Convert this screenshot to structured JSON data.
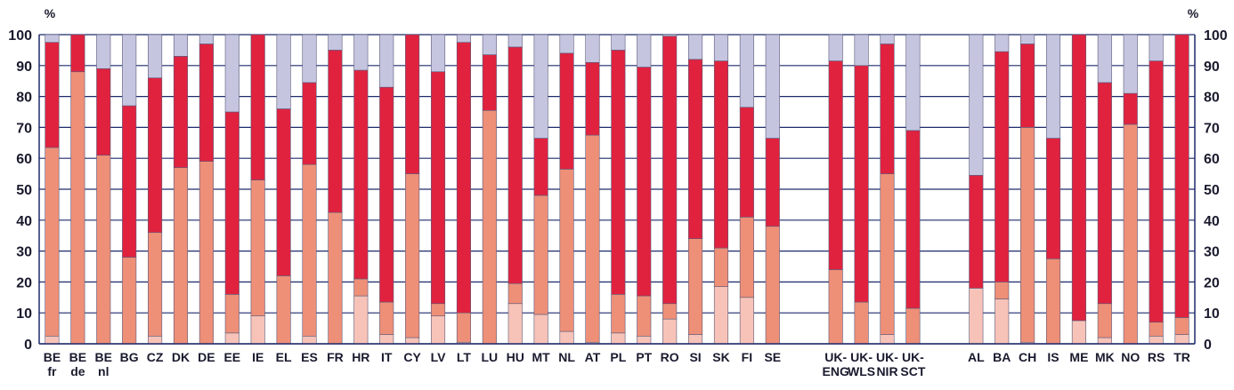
{
  "chart_data": {
    "type": "bar",
    "stacked": true,
    "y_unit_left": "%",
    "y_unit_right": "%",
    "ylim": [
      0,
      100
    ],
    "yticks": [
      "0",
      "10",
      "20",
      "30",
      "40",
      "50",
      "60",
      "70",
      "80",
      "90",
      "100"
    ],
    "grid": true,
    "categories": [
      [
        "BE",
        "fr"
      ],
      [
        "BE",
        "de"
      ],
      [
        "BE",
        "nl"
      ],
      [
        "BG"
      ],
      [
        "CZ"
      ],
      [
        "DK"
      ],
      [
        "DE"
      ],
      [
        "EE"
      ],
      [
        "IE"
      ],
      [
        "EL"
      ],
      [
        "ES"
      ],
      [
        "FR"
      ],
      [
        "HR"
      ],
      [
        "IT"
      ],
      [
        "CY"
      ],
      [
        "LV"
      ],
      [
        "LT"
      ],
      [
        "LU"
      ],
      [
        "HU"
      ],
      [
        "MT"
      ],
      [
        "NL"
      ],
      [
        "AT"
      ],
      [
        "PL"
      ],
      [
        "PT"
      ],
      [
        "RO"
      ],
      [
        "SI"
      ],
      [
        "SK"
      ],
      [
        "FI"
      ],
      [
        "SE"
      ],
      [
        "UK-",
        "ENG"
      ],
      [
        "UK-",
        "WLS"
      ],
      [
        "UK-",
        "NIR"
      ],
      [
        "UK-",
        "SCT"
      ],
      [
        "AL"
      ],
      [
        "BA"
      ],
      [
        "CH"
      ],
      [
        "IS"
      ],
      [
        "ME"
      ],
      [
        "MK"
      ],
      [
        "NO"
      ],
      [
        "RS"
      ],
      [
        "TR"
      ]
    ],
    "groups": [
      29,
      4,
      9
    ],
    "colors": [
      "#f7c3b8",
      "#ee8f78",
      "#e0223f",
      "#c5c5e0"
    ],
    "series": [
      {
        "values": [
          2.5,
          0,
          0,
          0,
          2.5,
          0,
          0,
          3.5,
          9,
          0,
          2.5,
          0,
          15.5,
          3,
          2,
          9,
          0.5,
          0,
          13,
          9.5,
          4,
          0.5,
          3.5,
          2.5,
          8,
          3,
          18.5,
          15,
          0,
          0,
          0,
          3,
          0,
          18,
          14.5,
          0.5,
          0,
          7.5,
          2,
          0,
          2.5,
          3
        ]
      },
      {
        "values": [
          61,
          88,
          61,
          28,
          33.5,
          57,
          59,
          12.5,
          44,
          22,
          55.5,
          42.5,
          5.5,
          10.5,
          53,
          4,
          9.5,
          75.5,
          6.5,
          38.5,
          52.5,
          67,
          12.5,
          13,
          5,
          31,
          12.5,
          26,
          38,
          24,
          13.5,
          52,
          11.5,
          0,
          5.5,
          69.5,
          27.5,
          0,
          11,
          71,
          4.5,
          5.5
        ]
      },
      {
        "values": [
          34,
          12,
          28,
          49,
          50,
          36,
          38,
          59,
          47,
          54,
          26.5,
          52.5,
          67.5,
          69.5,
          45,
          75,
          87.5,
          18,
          76.5,
          18.5,
          37.5,
          23.5,
          79,
          74,
          86.5,
          58,
          60.5,
          35.5,
          28.5,
          67.5,
          76.5,
          42,
          57.5,
          36.5,
          74.5,
          27,
          39,
          92.5,
          71.5,
          10,
          84.5,
          91.5
        ]
      },
      {
        "values": [
          2.5,
          0,
          11,
          23,
          14,
          7,
          3,
          25,
          0,
          24,
          15.5,
          5,
          11.5,
          17,
          0,
          12,
          2.5,
          6.5,
          4,
          33.5,
          6,
          9,
          5,
          10.5,
          0.5,
          8,
          8.5,
          23.5,
          33.5,
          8.5,
          10,
          3,
          31,
          45.5,
          5.5,
          3,
          33.5,
          0,
          15.5,
          19,
          8.5,
          0
        ]
      }
    ]
  }
}
